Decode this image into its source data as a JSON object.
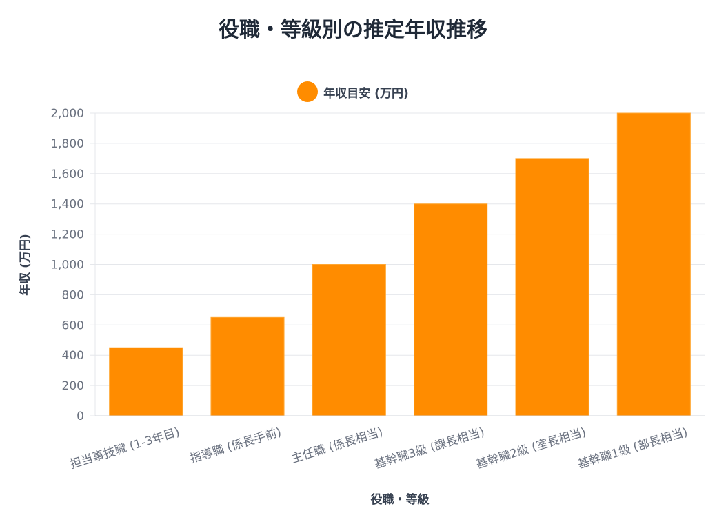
{
  "chart_data": {
    "type": "bar",
    "title": "役職・等級別の推定年収推移",
    "xlabel": "役職・等級",
    "ylabel": "年収 (万円)",
    "categories": [
      "担当事技職 (1-3年目)",
      "指導職 (係長手前)",
      "主任職 (係長相当)",
      "基幹職3級 (課長相当)",
      "基幹職2級 (室長相当)",
      "基幹職1級 (部長相当)"
    ],
    "series": [
      {
        "name": "年収目安 (万円)",
        "values": [
          450,
          650,
          1000,
          1400,
          1700,
          2000
        ]
      }
    ],
    "ylim": [
      0,
      2000
    ],
    "yticks": [
      "0",
      "200",
      "400",
      "600",
      "800",
      "1,000",
      "1,200",
      "1,400",
      "1,600",
      "1,800",
      "2,000"
    ],
    "grid": true,
    "legend_position": "top",
    "bar_color": "#ff8c00"
  }
}
